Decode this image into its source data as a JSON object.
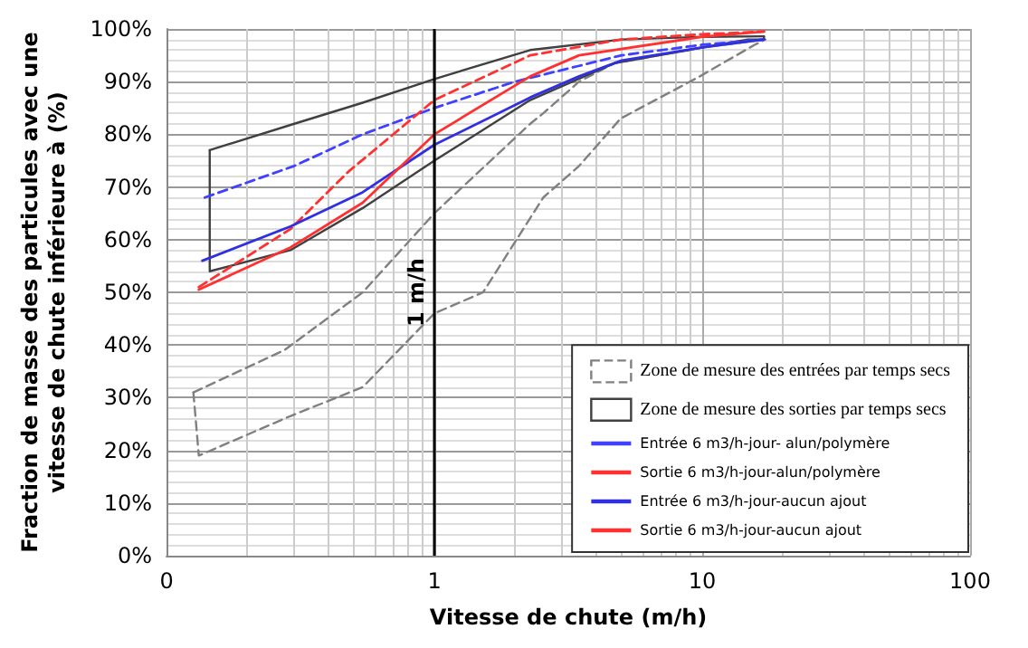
{
  "chart_data": {
    "type": "line",
    "xlabel": "Vitesse de chute (m/h)",
    "ylabel": "Fraction de masse des particules avec une vitesse de chute inférieure à (%)",
    "log": "x",
    "grid": true,
    "legend": "bottom right",
    "marker": "none",
    "xlim": [
      0.1,
      100
    ],
    "xticks": [
      {
        "value": 0.1,
        "label": "0"
      },
      {
        "value": 1,
        "label": "1"
      },
      {
        "value": 10,
        "label": "10"
      },
      {
        "value": 100,
        "label": "100"
      }
    ],
    "ylim": [
      0,
      100
    ],
    "yticks": [
      {
        "value": 0,
        "label": "0%"
      },
      {
        "value": 10,
        "label": "10%"
      },
      {
        "value": 20,
        "label": "20%"
      },
      {
        "value": 30,
        "label": "30%"
      },
      {
        "value": 40,
        "label": "40%"
      },
      {
        "value": 50,
        "label": "50%"
      },
      {
        "value": 60,
        "label": "60%"
      },
      {
        "value": 70,
        "label": "70%"
      },
      {
        "value": 80,
        "label": "80%"
      },
      {
        "value": 90,
        "label": "90%"
      },
      {
        "value": 100,
        "label": "100%"
      }
    ],
    "ref_lines": [
      {
        "axis": "x",
        "value": 1,
        "label": "1 m/h",
        "color": "#000000"
      }
    ],
    "series": [
      {
        "name": "Zone de mesure des entrées par temps secs",
        "color": "#808080",
        "line_style": "dashed",
        "x": [
          0.126,
          0.275,
          0.54,
          1,
          2.28,
          2.55,
          3.47,
          4.7,
          10,
          17.2
        ],
        "values": [
          31,
          39,
          50,
          65,
          82,
          84,
          90,
          93.5,
          96.5,
          98
        ]
      },
      {
        "color": "#808080",
        "line_style": "dashed",
        "x": [
          0.126,
          0.132,
          0.29,
          0.54,
          1,
          1.52,
          2.55,
          3.47,
          4.96,
          9.8,
          15.7,
          17.2
        ],
        "values": [
          31,
          19,
          26.5,
          32,
          46,
          50,
          68,
          74,
          83,
          91,
          97,
          98
        ]
      },
      {
        "name": "Zone de mesure des sorties par temps secs",
        "color": "#404040",
        "line_style": "solid",
        "x": [
          0.145,
          0.3,
          0.54,
          1,
          2.28,
          5,
          10,
          17
        ],
        "values": [
          77,
          82,
          86,
          90.5,
          96,
          98,
          98.5,
          98.6
        ]
      },
      {
        "color": "#404040",
        "line_style": "solid",
        "x": [
          0.145,
          0.145,
          0.29,
          0.54,
          1,
          2.28,
          4.7,
          14.8,
          17,
          17
        ],
        "values": [
          77,
          54,
          58,
          66,
          75,
          86.5,
          93.5,
          98,
          98,
          98.6
        ]
      },
      {
        "name": "Entrée 6 m3/h-jour- alun/polymère",
        "color": "#4040ff",
        "line_style": "dashed",
        "x": [
          0.139,
          0.3,
          0.54,
          1,
          2,
          3.47,
          5,
          10,
          17
        ],
        "values": [
          68,
          74,
          80,
          85,
          90,
          93,
          95,
          97,
          98
        ]
      },
      {
        "name": "Sortie 6 m3/h-jour-alun/polymère",
        "color": "#ff3030",
        "line_style": "dashed",
        "x": [
          0.132,
          0.29,
          0.48,
          1,
          2.28,
          5,
          10,
          17
        ],
        "values": [
          51,
          62,
          73,
          86.5,
          95,
          98,
          99,
          99.5
        ]
      },
      {
        "name": "Entrée 6 m3/h-jour-aucun ajout",
        "color": "#3030e0",
        "line_style": "solid",
        "x": [
          0.136,
          0.29,
          0.54,
          1,
          2.28,
          3.47,
          5,
          10,
          17
        ],
        "values": [
          56,
          62.5,
          69,
          78,
          87,
          91,
          94,
          96.5,
          98
        ]
      },
      {
        "name": "Sortie 6 m3/h-jour-aucun ajout",
        "color": "#ff3030",
        "line_style": "solid",
        "x": [
          0.132,
          0.29,
          0.54,
          1,
          2.28,
          3.47,
          10,
          17
        ],
        "values": [
          50.5,
          58.5,
          67,
          80,
          91,
          95,
          98.5,
          99.5
        ]
      }
    ]
  }
}
